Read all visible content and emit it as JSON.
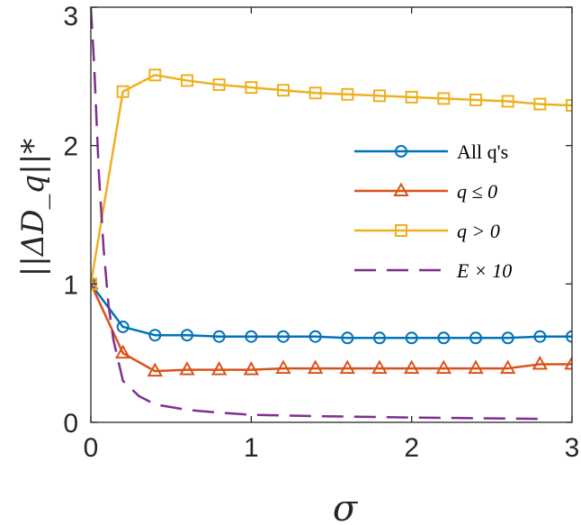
{
  "chart_data": {
    "type": "line",
    "title": "",
    "xlabel": "σ",
    "ylabel": "||ΔD_q||*",
    "xlim": [
      0,
      3
    ],
    "ylim": [
      0,
      3
    ],
    "xticks": [
      0,
      1,
      2,
      3
    ],
    "yticks": [
      0,
      1,
      2,
      3
    ],
    "grid": false,
    "legend_position": "center-right",
    "series": [
      {
        "name": "All q's",
        "color": "#0072BD",
        "marker": "circle",
        "line": "solid",
        "x": [
          0,
          0.2,
          0.4,
          0.6,
          0.8,
          1.0,
          1.2,
          1.4,
          1.6,
          1.8,
          2.0,
          2.2,
          2.4,
          2.6,
          2.8,
          3.0
        ],
        "y": [
          1.0,
          0.69,
          0.63,
          0.63,
          0.62,
          0.62,
          0.62,
          0.62,
          0.61,
          0.61,
          0.61,
          0.61,
          0.61,
          0.61,
          0.62,
          0.62
        ]
      },
      {
        "name": "q ≤ 0",
        "color": "#D95319",
        "marker": "triangle",
        "line": "solid",
        "x": [
          0,
          0.2,
          0.4,
          0.6,
          0.8,
          1.0,
          1.2,
          1.4,
          1.6,
          1.8,
          2.0,
          2.2,
          2.4,
          2.6,
          2.8,
          3.0
        ],
        "y": [
          1.0,
          0.5,
          0.37,
          0.38,
          0.38,
          0.38,
          0.39,
          0.39,
          0.39,
          0.39,
          0.39,
          0.39,
          0.39,
          0.39,
          0.42,
          0.42
        ]
      },
      {
        "name": "q > 0",
        "color": "#EDB120",
        "marker": "square",
        "line": "solid",
        "x": [
          0,
          0.2,
          0.4,
          0.6,
          0.8,
          1.0,
          1.2,
          1.4,
          1.6,
          1.8,
          2.0,
          2.2,
          2.4,
          2.6,
          2.8,
          3.0
        ],
        "y": [
          1.0,
          2.39,
          2.51,
          2.47,
          2.44,
          2.42,
          2.4,
          2.38,
          2.37,
          2.36,
          2.35,
          2.34,
          2.33,
          2.32,
          2.3,
          2.29
        ]
      },
      {
        "name": "E × 10",
        "color": "#7E2F8E",
        "marker": "none",
        "line": "dashed",
        "x": [
          0.0,
          0.02,
          0.05,
          0.08,
          0.11,
          0.14,
          0.2,
          0.3,
          0.4,
          0.6,
          0.8,
          1.0,
          1.4,
          2.0,
          2.4,
          2.8
        ],
        "y": [
          3.0,
          2.6,
          1.8,
          1.25,
          0.85,
          0.6,
          0.3,
          0.19,
          0.13,
          0.09,
          0.07,
          0.055,
          0.045,
          0.035,
          0.03,
          0.025
        ]
      }
    ]
  }
}
